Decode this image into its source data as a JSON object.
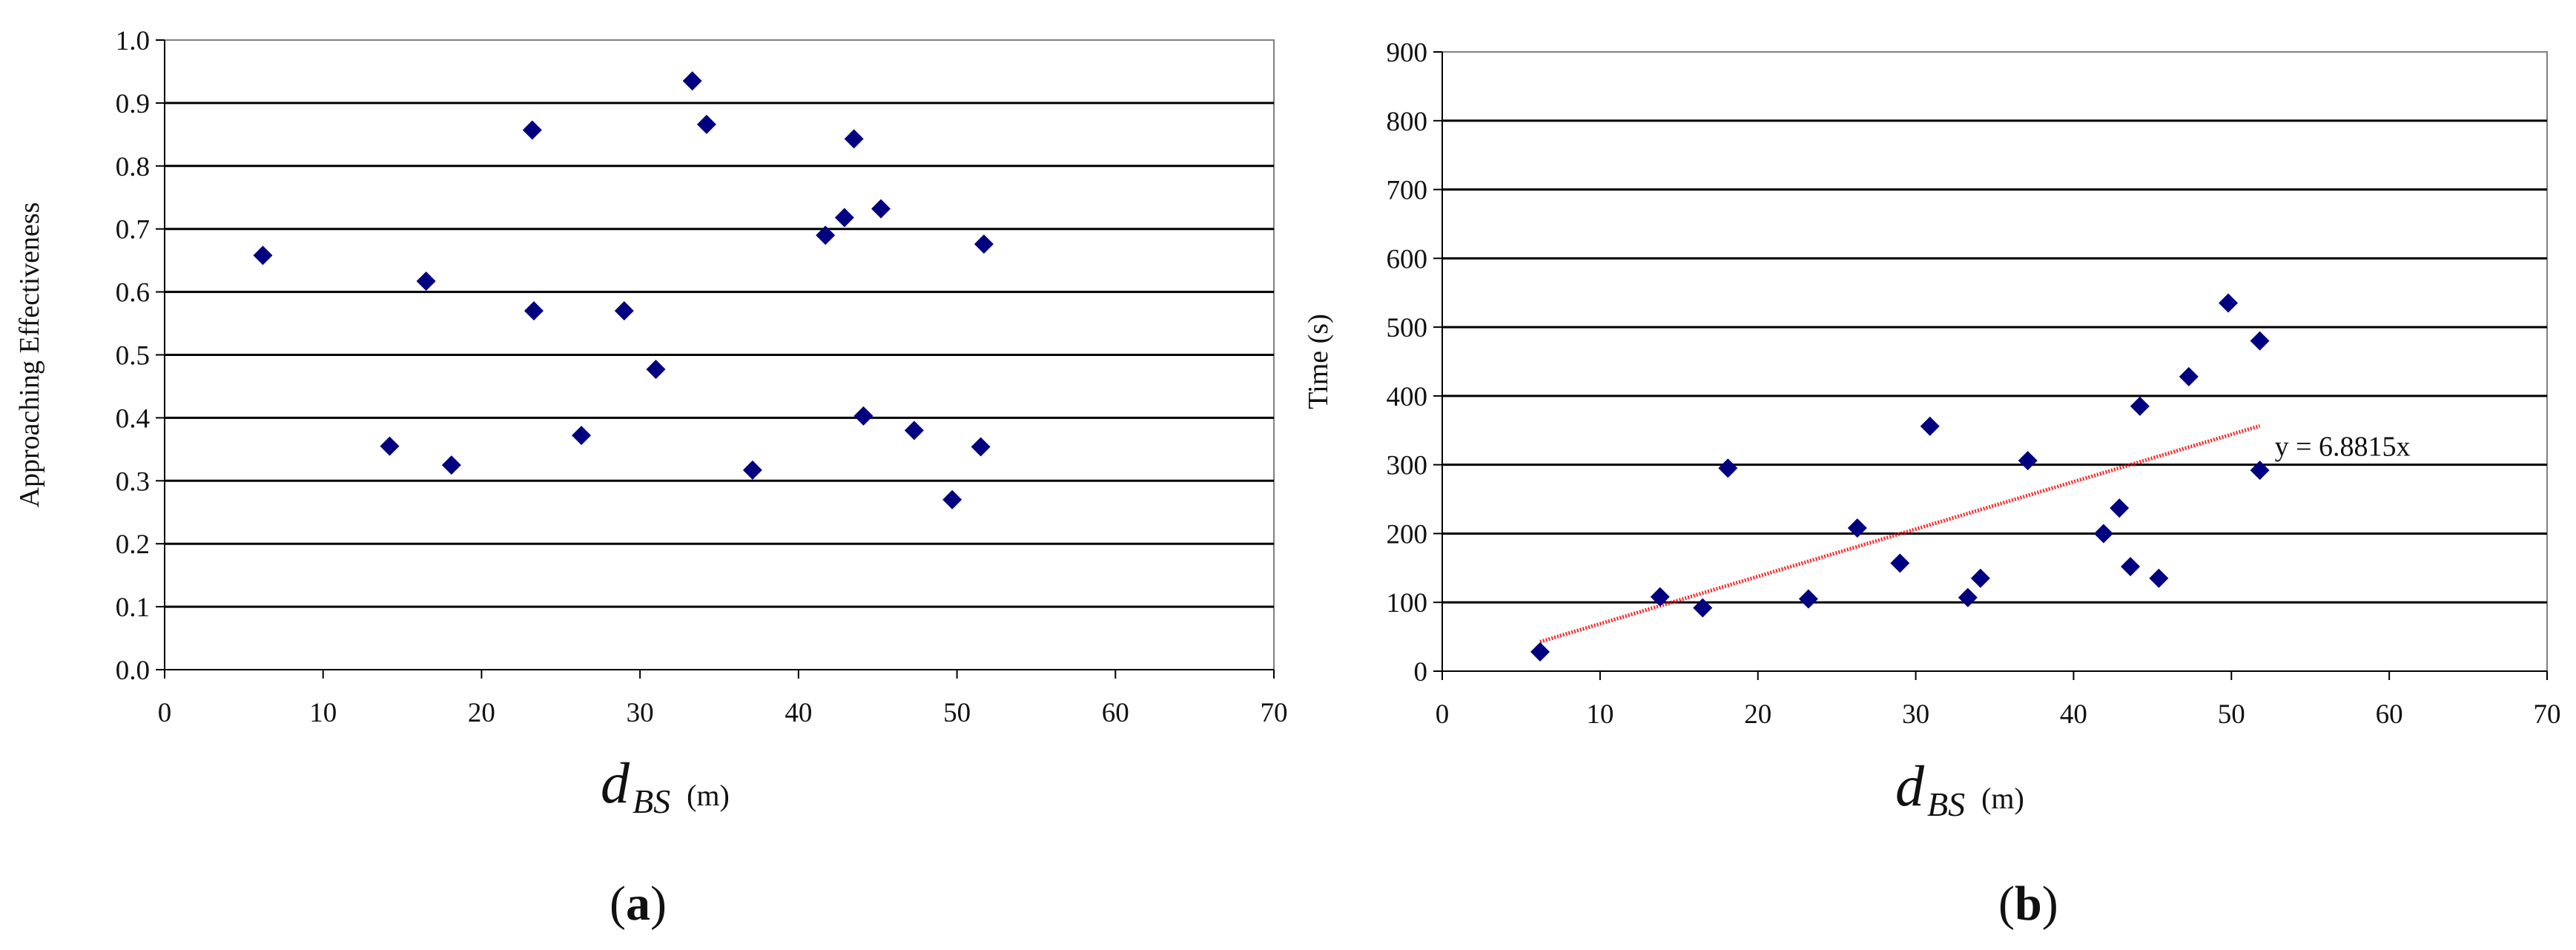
{
  "chart_data": [
    {
      "type": "scatter",
      "panel_label": "(a)",
      "panel_label_parts": [
        "(",
        "a",
        ")"
      ],
      "xlabel": {
        "main": "d",
        "sub": "BS",
        "unit": "(m)"
      },
      "ylabel": "Approaching Effectiveness",
      "xlim": [
        0,
        70
      ],
      "ylim": [
        0,
        1.0
      ],
      "xticks": [
        "0",
        "10",
        "20",
        "30",
        "40",
        "50",
        "60",
        "70"
      ],
      "yticks": [
        "0.0",
        "0.1",
        "0.2",
        "0.3",
        "0.4",
        "0.5",
        "0.6",
        "0.7",
        "0.8",
        "0.9",
        "1.0"
      ],
      "grid": "horizontal",
      "marker": "diamond",
      "marker_color": "#000080",
      "points": [
        {
          "x": 6.2,
          "y": 0.658
        },
        {
          "x": 14.2,
          "y": 0.355
        },
        {
          "x": 16.5,
          "y": 0.617
        },
        {
          "x": 18.1,
          "y": 0.325
        },
        {
          "x": 23.2,
          "y": 0.857
        },
        {
          "x": 23.3,
          "y": 0.57
        },
        {
          "x": 26.3,
          "y": 0.372
        },
        {
          "x": 29.0,
          "y": 0.57
        },
        {
          "x": 31.0,
          "y": 0.477
        },
        {
          "x": 33.3,
          "y": 0.935
        },
        {
          "x": 34.2,
          "y": 0.866
        },
        {
          "x": 37.1,
          "y": 0.317
        },
        {
          "x": 41.7,
          "y": 0.69
        },
        {
          "x": 42.9,
          "y": 0.718
        },
        {
          "x": 43.5,
          "y": 0.843
        },
        {
          "x": 44.1,
          "y": 0.403
        },
        {
          "x": 45.2,
          "y": 0.732
        },
        {
          "x": 47.3,
          "y": 0.38
        },
        {
          "x": 49.7,
          "y": 0.27
        },
        {
          "x": 51.5,
          "y": 0.354
        },
        {
          "x": 51.7,
          "y": 0.676
        }
      ]
    },
    {
      "type": "scatter",
      "panel_label": "(b)",
      "panel_label_parts": [
        "(",
        "b",
        ")"
      ],
      "xlabel": {
        "main": "d",
        "sub": "BS",
        "unit": "(m)"
      },
      "ylabel": "Time (s)",
      "xlim": [
        0,
        70
      ],
      "ylim": [
        0,
        900
      ],
      "xticks": [
        "0",
        "10",
        "20",
        "30",
        "40",
        "50",
        "60",
        "70"
      ],
      "yticks": [
        "0",
        "100",
        "200",
        "300",
        "400",
        "500",
        "600",
        "700",
        "800",
        "900"
      ],
      "grid": "horizontal",
      "marker": "diamond",
      "marker_color": "#000080",
      "trendline": {
        "slope": 6.8815,
        "x_range": [
          6.2,
          51.8
        ],
        "color": "#ff0000",
        "label": "y = 6.8815x"
      },
      "points": [
        {
          "x": 6.2,
          "y": 28
        },
        {
          "x": 13.8,
          "y": 108
        },
        {
          "x": 16.5,
          "y": 92
        },
        {
          "x": 18.1,
          "y": 295
        },
        {
          "x": 23.2,
          "y": 105
        },
        {
          "x": 26.3,
          "y": 208
        },
        {
          "x": 29.0,
          "y": 157
        },
        {
          "x": 30.9,
          "y": 356
        },
        {
          "x": 33.3,
          "y": 107
        },
        {
          "x": 34.1,
          "y": 135
        },
        {
          "x": 37.1,
          "y": 306
        },
        {
          "x": 41.9,
          "y": 200
        },
        {
          "x": 42.9,
          "y": 237
        },
        {
          "x": 43.6,
          "y": 152
        },
        {
          "x": 44.2,
          "y": 385
        },
        {
          "x": 45.4,
          "y": 135
        },
        {
          "x": 47.3,
          "y": 428
        },
        {
          "x": 49.8,
          "y": 535
        },
        {
          "x": 51.8,
          "y": 480
        },
        {
          "x": 51.8,
          "y": 292
        }
      ]
    }
  ]
}
